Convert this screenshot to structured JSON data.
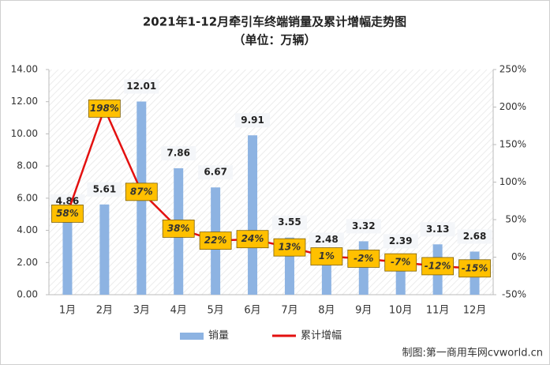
{
  "chart_data": {
    "type": "bar-line",
    "title": "2021年1-12月牵引车终端销量及累计增幅走势图",
    "subtitle": "（单位：万辆）",
    "categories": [
      "1月",
      "2月",
      "3月",
      "4月",
      "5月",
      "6月",
      "7月",
      "8月",
      "9月",
      "10月",
      "11月",
      "12月"
    ],
    "series": [
      {
        "name": "销量",
        "type": "bar",
        "color": "#8db3e2",
        "values": [
          4.86,
          5.61,
          12.01,
          7.86,
          6.67,
          9.91,
          3.55,
          2.48,
          3.32,
          2.39,
          3.13,
          2.68
        ]
      },
      {
        "name": "累计增幅",
        "type": "line",
        "axis": "y2",
        "color": "#e3100f",
        "values": [
          58,
          198,
          87,
          38,
          22,
          24,
          13,
          1,
          -2,
          -7,
          -12,
          -15
        ],
        "value_labels": [
          "58%",
          "198%",
          "87%",
          "38%",
          "22%",
          "24%",
          "13%",
          "1%",
          "-2%",
          "-7%",
          "-12%",
          "-15%"
        ]
      }
    ],
    "ylim": [
      0,
      14
    ],
    "yticks": [
      {
        "value": 0,
        "label": "0.00"
      },
      {
        "value": 2,
        "label": "2.00"
      },
      {
        "value": 4,
        "label": "4.00"
      },
      {
        "value": 6,
        "label": "6.00"
      },
      {
        "value": 8,
        "label": "8.00"
      },
      {
        "value": 10,
        "label": "10.00"
      },
      {
        "value": 12,
        "label": "12.00"
      },
      {
        "value": 14,
        "label": "14.00"
      }
    ],
    "y2lim": [
      -50,
      250
    ],
    "y2ticks": [
      {
        "value": -50,
        "label": "-50%"
      },
      {
        "value": 0,
        "label": "0%"
      },
      {
        "value": 50,
        "label": "50%"
      },
      {
        "value": 100,
        "label": "100%"
      },
      {
        "value": 150,
        "label": "150%"
      },
      {
        "value": 200,
        "label": "200%"
      },
      {
        "value": 250,
        "label": "250%"
      }
    ],
    "source": "制图:第一商用车网cvworld.cn"
  }
}
